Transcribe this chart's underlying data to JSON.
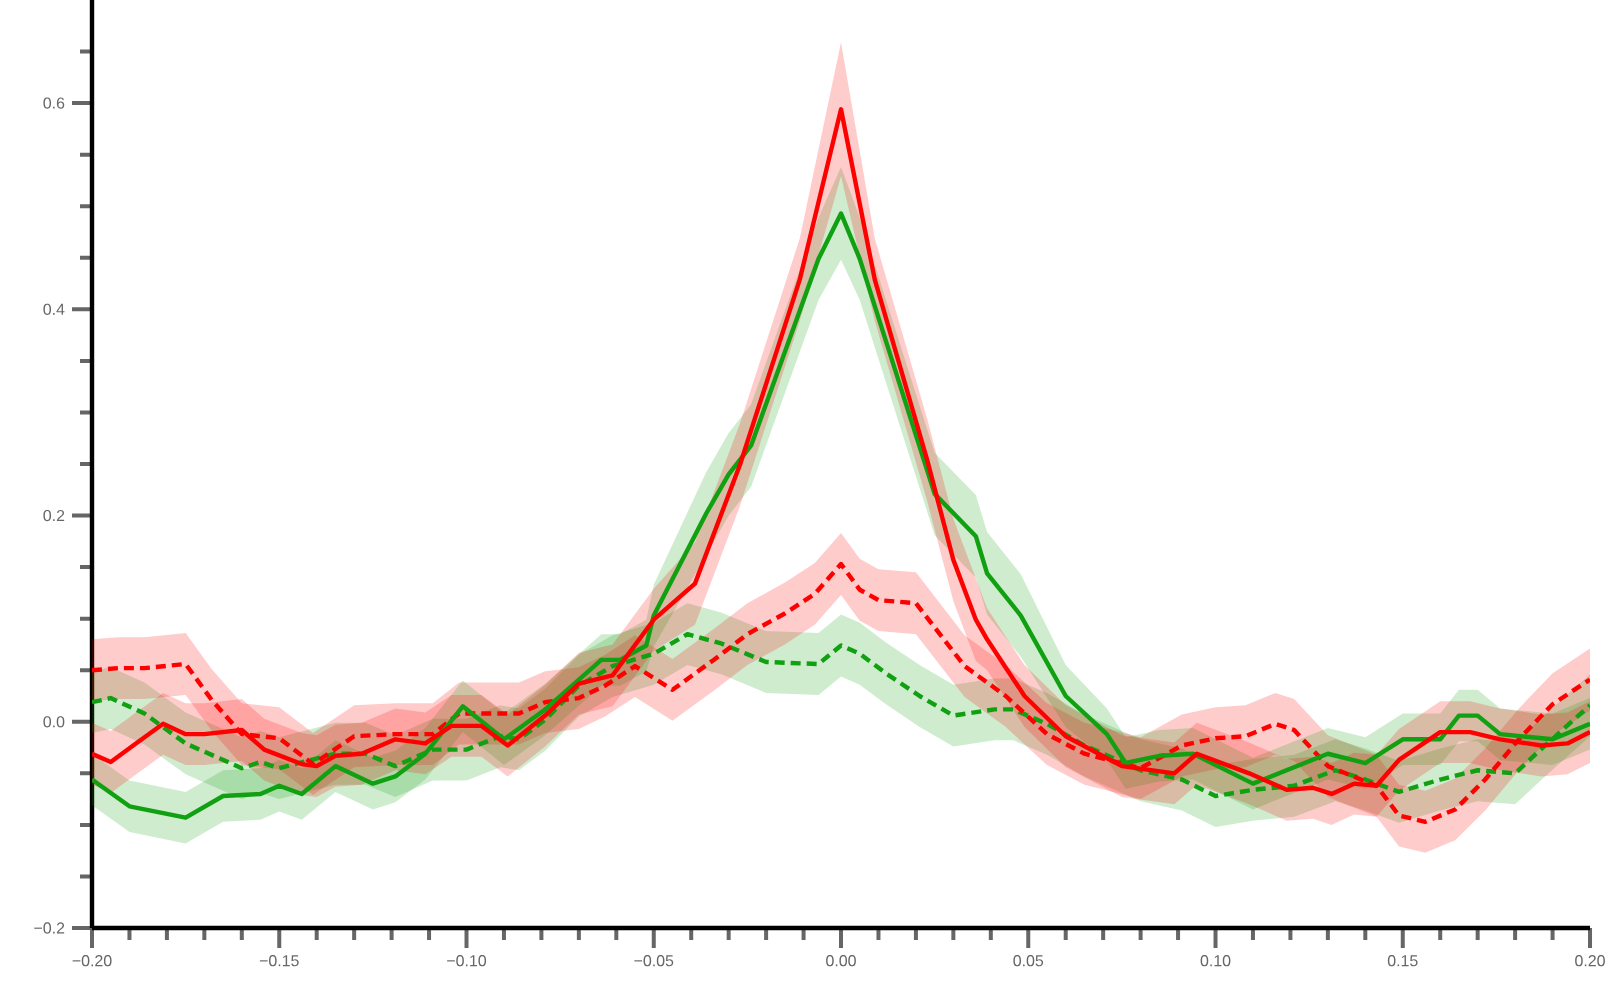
{
  "chart_data": {
    "type": "line",
    "xlim": [
      -0.2,
      0.2
    ],
    "ylim": [
      -0.2,
      0.7
    ],
    "xticks": [
      {
        "value": -0.2,
        "label": "−0.20"
      },
      {
        "value": -0.19,
        "label": null
      },
      {
        "value": -0.18,
        "label": null
      },
      {
        "value": -0.17,
        "label": null
      },
      {
        "value": -0.16,
        "label": null
      },
      {
        "value": -0.15,
        "label": "−0.15"
      },
      {
        "value": -0.14,
        "label": null
      },
      {
        "value": -0.13,
        "label": null
      },
      {
        "value": -0.12,
        "label": null
      },
      {
        "value": -0.11,
        "label": null
      },
      {
        "value": -0.1,
        "label": "−0.10"
      },
      {
        "value": -0.09,
        "label": null
      },
      {
        "value": -0.08,
        "label": null
      },
      {
        "value": -0.07,
        "label": null
      },
      {
        "value": -0.06,
        "label": null
      },
      {
        "value": -0.05,
        "label": "−0.05"
      },
      {
        "value": -0.04,
        "label": null
      },
      {
        "value": -0.03,
        "label": null
      },
      {
        "value": -0.02,
        "label": null
      },
      {
        "value": -0.01,
        "label": null
      },
      {
        "value": 0,
        "label": "0.00"
      },
      {
        "value": 0.01,
        "label": null
      },
      {
        "value": 0.02,
        "label": null
      },
      {
        "value": 0.03,
        "label": null
      },
      {
        "value": 0.04,
        "label": null
      },
      {
        "value": 0.05,
        "label": "0.05"
      },
      {
        "value": 0.06,
        "label": null
      },
      {
        "value": 0.07,
        "label": null
      },
      {
        "value": 0.08,
        "label": null
      },
      {
        "value": 0.09,
        "label": null
      },
      {
        "value": 0.1,
        "label": "0.10"
      },
      {
        "value": 0.11,
        "label": null
      },
      {
        "value": 0.12,
        "label": null
      },
      {
        "value": 0.13,
        "label": null
      },
      {
        "value": 0.14,
        "label": null
      },
      {
        "value": 0.15,
        "label": "0.15"
      },
      {
        "value": 0.16,
        "label": null
      },
      {
        "value": 0.17,
        "label": null
      },
      {
        "value": 0.18,
        "label": null
      },
      {
        "value": 0.19,
        "label": null
      },
      {
        "value": 0.2,
        "label": "0.20"
      }
    ],
    "yticks": [
      {
        "value": -0.2,
        "label": "−0.2"
      },
      {
        "value": -0.15,
        "label": null
      },
      {
        "value": -0.1,
        "label": null
      },
      {
        "value": -0.05,
        "label": null
      },
      {
        "value": 0,
        "label": "0.0"
      },
      {
        "value": 0.05,
        "label": null
      },
      {
        "value": 0.1,
        "label": null
      },
      {
        "value": 0.15,
        "label": null
      },
      0.2,
      {
        "value": 0.25,
        "label": null
      },
      {
        "value": 0.3,
        "label": null
      },
      {
        "value": 0.35,
        "label": null
      },
      0.4,
      {
        "value": 0.45,
        "label": null
      },
      {
        "value": 0.5,
        "label": null
      },
      {
        "value": 0.55,
        "label": null
      },
      0.6,
      {
        "value": 0.65,
        "label": null
      }
    ],
    "series": [
      {
        "color": "#11a011",
        "line_style": "dashed",
        "x": [
          -0.2,
          -0.195,
          -0.186,
          -0.175,
          -0.16,
          -0.155,
          -0.15,
          -0.135,
          -0.127,
          -0.119,
          -0.109,
          -0.1,
          -0.091,
          -0.086,
          -0.079,
          -0.07,
          -0.061,
          -0.05,
          -0.041,
          -0.032,
          -0.02,
          -0.006,
          0,
          0.005,
          0.012,
          0.021,
          0.03,
          0.041,
          0.046,
          0.055,
          0.065,
          0.08,
          0.091,
          0.1,
          0.11,
          0.121,
          0.132,
          0.14,
          0.149,
          0.16,
          0.17,
          0.18,
          0.188,
          0.2
        ],
        "values": [
          0.019,
          0.023,
          0.008,
          -0.021,
          -0.045,
          -0.039,
          -0.045,
          -0.031,
          -0.031,
          -0.043,
          -0.027,
          -0.027,
          -0.014,
          -0.017,
          0.002,
          0.035,
          0.054,
          0.066,
          0.085,
          0.076,
          0.058,
          0.056,
          0.074,
          0.066,
          0.047,
          0.025,
          0.006,
          0.012,
          0.012,
          -0.002,
          -0.023,
          -0.047,
          -0.056,
          -0.072,
          -0.066,
          -0.062,
          -0.047,
          -0.056,
          -0.068,
          -0.056,
          -0.047,
          -0.05,
          -0.023,
          0.016
        ],
        "lower": [
          -0.011,
          -0.007,
          -0.022,
          -0.051,
          -0.075,
          -0.069,
          -0.075,
          -0.061,
          -0.061,
          -0.073,
          -0.057,
          -0.057,
          -0.044,
          -0.047,
          -0.028,
          0.005,
          0.024,
          0.036,
          0.055,
          0.046,
          0.028,
          0.026,
          0.044,
          0.036,
          0.017,
          -0.005,
          -0.024,
          -0.018,
          -0.018,
          -0.032,
          -0.053,
          -0.077,
          -0.086,
          -0.102,
          -0.096,
          -0.092,
          -0.077,
          -0.086,
          -0.098,
          -0.086,
          -0.077,
          -0.08,
          -0.053,
          -0.014
        ],
        "upper": [
          0.049,
          0.053,
          0.038,
          0.009,
          -0.015,
          -0.009,
          -0.015,
          -0.001,
          -0.001,
          -0.013,
          0.003,
          0.003,
          0.016,
          0.013,
          0.032,
          0.065,
          0.084,
          0.096,
          0.115,
          0.106,
          0.088,
          0.086,
          0.104,
          0.096,
          0.077,
          0.055,
          0.036,
          0.042,
          0.042,
          0.028,
          0.007,
          -0.017,
          -0.026,
          -0.042,
          -0.036,
          -0.032,
          -0.017,
          -0.026,
          -0.038,
          -0.026,
          -0.017,
          -0.02,
          0.007,
          0.046
        ]
      },
      {
        "color": "#ff0000",
        "line_style": "dashed",
        "x": [
          -0.2,
          -0.193,
          -0.186,
          -0.175,
          -0.168,
          -0.16,
          -0.15,
          -0.141,
          -0.13,
          -0.119,
          -0.109,
          -0.102,
          -0.091,
          -0.086,
          -0.079,
          -0.07,
          -0.063,
          -0.055,
          -0.045,
          -0.034,
          -0.025,
          -0.015,
          -0.007,
          0,
          0.005,
          0.01,
          0.02,
          0.033,
          0.044,
          0.055,
          0.065,
          0.08,
          0.091,
          0.1,
          0.108,
          0.116,
          0.121,
          0.13,
          0.143,
          0.149,
          0.156,
          0.164,
          0.172,
          0.181,
          0.19,
          0.2
        ],
        "values": [
          0.05,
          0.052,
          0.052,
          0.056,
          0.021,
          -0.012,
          -0.016,
          -0.041,
          -0.014,
          -0.012,
          -0.012,
          0.008,
          0.008,
          0.008,
          0.019,
          0.023,
          0.035,
          0.054,
          0.031,
          0.06,
          0.085,
          0.105,
          0.124,
          0.153,
          0.128,
          0.118,
          0.115,
          0.054,
          0.025,
          -0.012,
          -0.031,
          -0.045,
          -0.023,
          -0.016,
          -0.014,
          -0.002,
          -0.008,
          -0.043,
          -0.062,
          -0.091,
          -0.097,
          -0.085,
          -0.056,
          -0.017,
          0.017,
          0.041
        ],
        "lower": [
          0.02,
          0.022,
          0.022,
          0.026,
          -0.009,
          -0.042,
          -0.046,
          -0.071,
          -0.044,
          -0.042,
          -0.042,
          -0.022,
          -0.022,
          -0.022,
          -0.011,
          -0.007,
          0.005,
          0.024,
          0.001,
          0.03,
          0.055,
          0.075,
          0.094,
          0.123,
          0.098,
          0.088,
          0.085,
          0.024,
          -0.005,
          -0.042,
          -0.061,
          -0.075,
          -0.053,
          -0.046,
          -0.044,
          -0.032,
          -0.038,
          -0.073,
          -0.092,
          -0.121,
          -0.127,
          -0.115,
          -0.086,
          -0.047,
          -0.013,
          0.011
        ],
        "upper": [
          0.08,
          0.082,
          0.082,
          0.086,
          0.051,
          0.018,
          0.014,
          -0.011,
          0.016,
          0.018,
          0.018,
          0.038,
          0.038,
          0.038,
          0.049,
          0.053,
          0.065,
          0.084,
          0.061,
          0.09,
          0.115,
          0.135,
          0.154,
          0.183,
          0.158,
          0.148,
          0.145,
          0.084,
          0.055,
          0.018,
          -0.001,
          -0.015,
          0.007,
          0.014,
          0.016,
          0.028,
          0.022,
          -0.013,
          -0.032,
          -0.061,
          -0.067,
          -0.055,
          -0.026,
          0.013,
          0.047,
          0.071
        ]
      },
      {
        "color": "#11a011",
        "line_style": "solid",
        "x": [
          -0.2,
          -0.19,
          -0.175,
          -0.165,
          -0.155,
          -0.15,
          -0.144,
          -0.135,
          -0.125,
          -0.119,
          -0.111,
          -0.101,
          -0.09,
          -0.079,
          -0.064,
          -0.059,
          -0.052,
          -0.05,
          -0.036,
          -0.03,
          -0.024,
          -0.006,
          0,
          0.005,
          0.025,
          0.036,
          0.039,
          0.048,
          0.06,
          0.071,
          0.076,
          0.085,
          0.094,
          0.11,
          0.13,
          0.14,
          0.15,
          0.16,
          0.165,
          0.17,
          0.176,
          0.19,
          0.2
        ],
        "values": [
          -0.056,
          -0.082,
          -0.093,
          -0.072,
          -0.07,
          -0.062,
          -0.07,
          -0.043,
          -0.06,
          -0.053,
          -0.031,
          0.015,
          -0.017,
          0.012,
          0.06,
          0.06,
          0.074,
          0.103,
          0.202,
          0.24,
          0.268,
          0.449,
          0.493,
          0.449,
          0.221,
          0.18,
          0.144,
          0.103,
          0.025,
          -0.012,
          -0.04,
          -0.033,
          -0.031,
          -0.06,
          -0.031,
          -0.04,
          -0.017,
          -0.017,
          0.006,
          0.006,
          -0.012,
          -0.017,
          -0.002
        ],
        "lower": [
          -0.081,
          -0.107,
          -0.118,
          -0.097,
          -0.095,
          -0.087,
          -0.095,
          -0.068,
          -0.085,
          -0.078,
          -0.056,
          -0.01,
          -0.042,
          -0.013,
          0.035,
          0.035,
          0.049,
          0.073,
          0.162,
          0.2,
          0.228,
          0.409,
          0.448,
          0.409,
          0.181,
          0.14,
          0.104,
          0.063,
          -0.005,
          -0.037,
          -0.065,
          -0.058,
          -0.056,
          -0.085,
          -0.056,
          -0.065,
          -0.042,
          -0.042,
          -0.019,
          -0.019,
          -0.037,
          -0.042,
          -0.027
        ],
        "upper": [
          -0.031,
          -0.057,
          -0.068,
          -0.047,
          -0.045,
          -0.037,
          -0.045,
          -0.018,
          -0.035,
          -0.028,
          -0.006,
          0.04,
          0.008,
          0.037,
          0.085,
          0.085,
          0.099,
          0.133,
          0.242,
          0.28,
          0.308,
          0.489,
          0.538,
          0.489,
          0.261,
          0.22,
          0.184,
          0.143,
          0.055,
          0.013,
          -0.015,
          -0.008,
          -0.006,
          -0.035,
          -0.006,
          -0.015,
          0.008,
          0.008,
          0.031,
          0.031,
          0.013,
          0.008,
          0.023
        ]
      },
      {
        "color": "#ff0000",
        "line_style": "solid",
        "x": [
          -0.2,
          -0.195,
          -0.189,
          -0.181,
          -0.175,
          -0.17,
          -0.16,
          -0.154,
          -0.144,
          -0.14,
          -0.135,
          -0.128,
          -0.119,
          -0.111,
          -0.104,
          -0.096,
          -0.089,
          -0.079,
          -0.07,
          -0.061,
          -0.05,
          -0.039,
          -0.027,
          -0.011,
          0,
          0.009,
          0.023,
          0.03,
          0.036,
          0.039,
          0.049,
          0.06,
          0.075,
          0.089,
          0.095,
          0.109,
          0.119,
          0.126,
          0.131,
          0.137,
          0.143,
          0.149,
          0.16,
          0.168,
          0.176,
          0.187,
          0.194,
          0.2
        ],
        "values": [
          -0.031,
          -0.039,
          -0.023,
          -0.002,
          -0.012,
          -0.012,
          -0.008,
          -0.027,
          -0.041,
          -0.043,
          -0.033,
          -0.031,
          -0.017,
          -0.021,
          -0.004,
          -0.004,
          -0.023,
          0.006,
          0.037,
          0.045,
          0.099,
          0.134,
          0.249,
          0.429,
          0.594,
          0.429,
          0.254,
          0.157,
          0.099,
          0.08,
          0.025,
          -0.014,
          -0.043,
          -0.05,
          -0.031,
          -0.05,
          -0.066,
          -0.064,
          -0.07,
          -0.06,
          -0.062,
          -0.037,
          -0.01,
          -0.01,
          -0.017,
          -0.023,
          -0.021,
          -0.01
        ],
        "lower": [
          -0.061,
          -0.069,
          -0.053,
          -0.032,
          -0.042,
          -0.042,
          -0.038,
          -0.057,
          -0.071,
          -0.073,
          -0.063,
          -0.061,
          -0.047,
          -0.051,
          -0.034,
          -0.034,
          -0.053,
          -0.024,
          0.007,
          0.015,
          0.069,
          0.094,
          0.209,
          0.389,
          0.529,
          0.389,
          0.214,
          0.117,
          0.059,
          0.05,
          -0.005,
          -0.044,
          -0.073,
          -0.08,
          -0.061,
          -0.08,
          -0.096,
          -0.094,
          -0.1,
          -0.09,
          -0.092,
          -0.067,
          -0.04,
          -0.04,
          -0.047,
          -0.053,
          -0.051,
          -0.04
        ],
        "upper": [
          -0.001,
          -0.009,
          0.007,
          0.028,
          0.018,
          0.018,
          0.022,
          0.003,
          -0.011,
          -0.013,
          -0.003,
          -0.001,
          0.013,
          0.009,
          0.026,
          0.026,
          0.007,
          0.036,
          0.067,
          0.075,
          0.129,
          0.174,
          0.289,
          0.469,
          0.659,
          0.469,
          0.294,
          0.197,
          0.139,
          0.11,
          0.055,
          0.016,
          -0.013,
          -0.02,
          -0.001,
          -0.02,
          -0.036,
          -0.034,
          -0.04,
          -0.03,
          -0.032,
          -0.007,
          0.02,
          0.02,
          0.013,
          0.007,
          0.009,
          0.02
        ]
      }
    ]
  }
}
